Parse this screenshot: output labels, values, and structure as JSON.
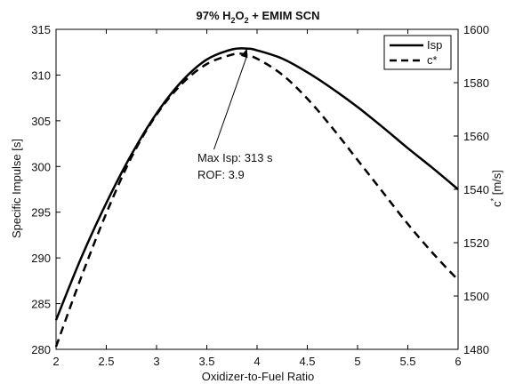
{
  "chart_data": {
    "type": "line",
    "title": {
      "prefix": "97% H",
      "sub1": "2",
      "mid": "O",
      "sub2": "2",
      "suffix": " + EMIM SCN"
    },
    "xlabel": "Oxidizer-to-Fuel Ratio",
    "ylabel_left": "Specific Impulse [s]",
    "ylabel_right": {
      "base": "c",
      "sup": "*",
      "rest": " [m/s]"
    },
    "xlim": [
      2,
      6
    ],
    "ylim_left": [
      280,
      315
    ],
    "ylim_right": [
      1480,
      1600
    ],
    "x_ticks": [
      "2",
      "2.5",
      "3",
      "3.5",
      "4",
      "4.5",
      "5",
      "5.5",
      "6"
    ],
    "y_left_ticks": [
      "280",
      "285",
      "290",
      "295",
      "300",
      "305",
      "310",
      "315"
    ],
    "y_right_ticks": [
      "1480",
      "1500",
      "1520",
      "1540",
      "1560",
      "1580",
      "1600"
    ],
    "grid": false,
    "legend_position": "top-right",
    "series": [
      {
        "name": "Isp",
        "axis": "left",
        "style": "solid",
        "color": "#000000",
        "x": [
          2.0,
          2.25,
          2.5,
          2.75,
          3.0,
          3.25,
          3.5,
          3.75,
          3.9,
          4.0,
          4.25,
          4.5,
          4.75,
          5.0,
          5.25,
          5.5,
          5.75,
          6.0
        ],
        "y": [
          283.2,
          290.0,
          296.0,
          301.3,
          305.8,
          309.3,
          311.7,
          312.8,
          312.9,
          312.7,
          311.8,
          310.3,
          308.5,
          306.5,
          304.3,
          302.0,
          299.8,
          297.5
        ]
      },
      {
        "name": "c*",
        "axis": "right",
        "style": "dashed",
        "color": "#000000",
        "x": [
          2.0,
          2.25,
          2.5,
          2.75,
          3.0,
          3.25,
          3.5,
          3.75,
          3.85,
          4.0,
          4.25,
          4.5,
          4.75,
          5.0,
          5.25,
          5.5,
          5.75,
          6.0
        ],
        "y": [
          1481.0,
          1507.0,
          1531.0,
          1552.0,
          1568.0,
          1579.5,
          1587.0,
          1590.5,
          1590.8,
          1589.0,
          1583.0,
          1574.0,
          1563.0,
          1551.0,
          1539.0,
          1527.0,
          1516.0,
          1506.0
        ]
      }
    ],
    "annotation": {
      "line1": "Max Isp: 313 s",
      "line2": "ROF: 3.9",
      "target_x": 3.9,
      "target_y": 312.9,
      "text_x": 3.0,
      "text_y": 300.5
    },
    "colors": {
      "axis": "#000000",
      "background": "#ffffff"
    }
  }
}
